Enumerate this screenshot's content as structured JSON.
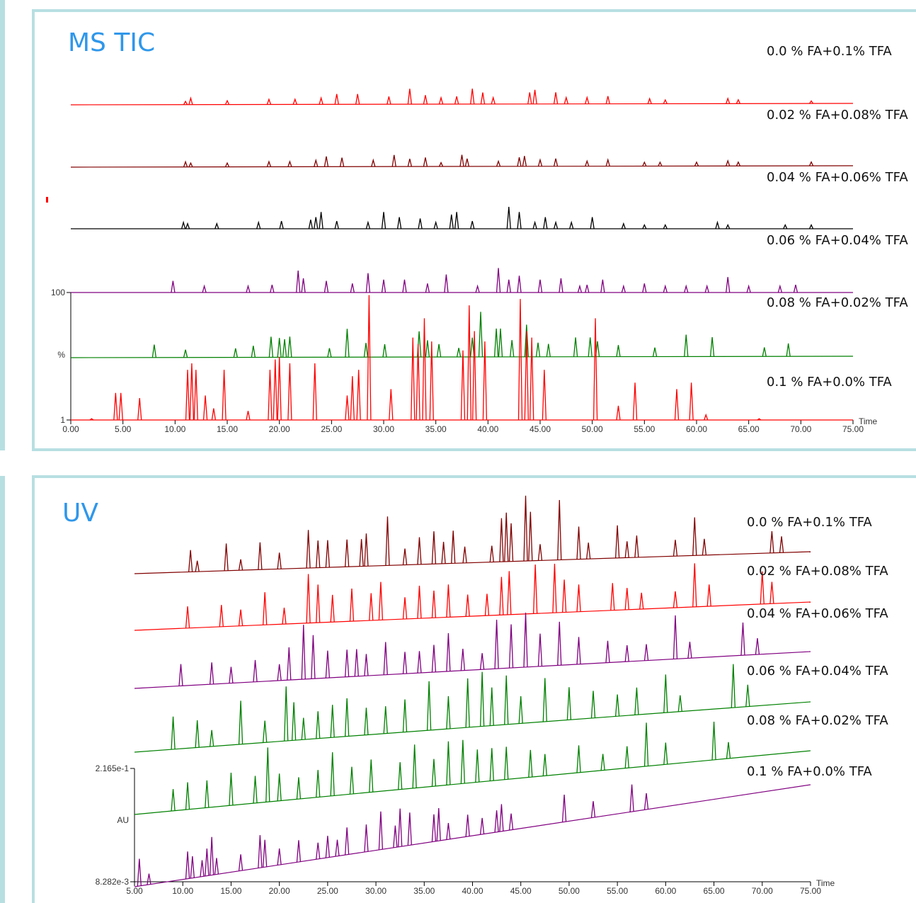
{
  "chart_data": [
    {
      "type": "line",
      "title": "MS TIC",
      "x_label": "Time",
      "y_label": "%",
      "xlim": [
        0,
        75
      ],
      "ylim": [
        1,
        100
      ],
      "xticks": [
        {
          "value": 0,
          "label": "0.00"
        },
        {
          "value": 5,
          "label": "5.00"
        },
        {
          "value": 10,
          "label": "10.00"
        },
        {
          "value": 15,
          "label": "15.00"
        },
        {
          "value": 20,
          "label": "20.00"
        },
        {
          "value": 25,
          "label": "25.00"
        },
        {
          "value": 30,
          "label": "30.00"
        },
        {
          "value": 35,
          "label": "35.00"
        },
        {
          "value": 40,
          "label": "40.00"
        },
        {
          "value": 45,
          "label": "45.00"
        },
        {
          "value": 50,
          "label": "50.00"
        },
        {
          "value": 55,
          "label": "55.00"
        },
        {
          "value": 60,
          "label": "60.00"
        },
        {
          "value": 65,
          "label": "65.00"
        },
        {
          "value": 70,
          "label": "70.00"
        },
        {
          "value": 75,
          "label": "75.00"
        }
      ],
      "yticks": [
        1,
        100
      ],
      "series": [
        {
          "name": "0.0 % FA+0.1% TFA",
          "color": "#ff0000",
          "x": [
            11,
            11.5,
            15,
            19,
            21.5,
            24,
            25.5,
            27.5,
            30.5,
            32.5,
            34,
            35.5,
            37,
            38.5,
            39.5,
            40.5,
            44,
            44.5,
            46.5,
            47.5,
            49.5,
            51.5,
            55.5,
            57,
            63,
            64,
            71
          ],
          "values": [
            2.5,
            5,
            3,
            4,
            4,
            5,
            8,
            8,
            6,
            12,
            7,
            5,
            6,
            12,
            9,
            5,
            9,
            11,
            9,
            5,
            5,
            6,
            4,
            3,
            4,
            3,
            2
          ]
        },
        {
          "name": "0.02 % FA+0.08% TFA",
          "color": "#800000",
          "x": [
            11,
            11.5,
            15,
            19,
            21,
            23.5,
            24.5,
            26,
            29,
            31,
            32.5,
            34,
            35.5,
            37.5,
            38,
            41,
            43,
            43.5,
            45,
            46.5,
            49.5,
            51.5,
            55,
            56.5,
            60,
            63,
            64,
            71
          ],
          "values": [
            4,
            3,
            3,
            4,
            4,
            5,
            8,
            7,
            5,
            9,
            6,
            7,
            3,
            9,
            6,
            4,
            7,
            8,
            5,
            6,
            4,
            5,
            3,
            3,
            3,
            4,
            3,
            3
          ]
        },
        {
          "name": "0.04 % FA+0.06% TFA",
          "color": "#000000",
          "x": [
            10.8,
            11.2,
            14,
            18,
            20.2,
            23,
            23.5,
            24,
            25.5,
            28.5,
            30,
            31.5,
            33.5,
            35,
            36.5,
            37,
            38.5,
            42,
            43,
            44.5,
            45.5,
            46.5,
            48,
            50,
            53,
            55,
            57,
            62,
            63,
            68.5,
            71
          ],
          "values": [
            5,
            4,
            4,
            5,
            6,
            7,
            9,
            13,
            6,
            5,
            13,
            9,
            8,
            5,
            11,
            13,
            6,
            17,
            13,
            5,
            9,
            5,
            5,
            9,
            4,
            3,
            3,
            5,
            3,
            3,
            3
          ]
        },
        {
          "name": "0.06 % FA+0.04% TFA",
          "color": "#800080",
          "x": [
            9.8,
            12.8,
            17,
            19.3,
            21.8,
            22.3,
            24.5,
            27,
            28.5,
            30,
            32,
            34.2,
            36,
            39,
            41,
            42,
            43,
            45,
            47,
            48.8,
            49.5,
            51,
            53,
            55,
            57,
            59,
            61,
            63,
            65,
            68,
            69.5
          ],
          "values": [
            9,
            5,
            5,
            6,
            17,
            11,
            9,
            7,
            15,
            10,
            10,
            7,
            14,
            5,
            19,
            10,
            13,
            10,
            11,
            5,
            6,
            10,
            5,
            7,
            5,
            5,
            5,
            12,
            5,
            5,
            6
          ]
        },
        {
          "name": "0.08 % FA+0.02% TFA",
          "color": "#008000",
          "x": [
            8,
            11,
            15.8,
            17.5,
            19.2,
            20,
            20.5,
            21,
            24.8,
            26.5,
            28.3,
            30.1,
            33.4,
            34.2,
            35.3,
            37.2,
            38.5,
            39.3,
            40.8,
            41.2,
            42.3,
            43.7,
            44.8,
            45.8,
            48.4,
            49.8,
            50.5,
            52.5,
            56,
            59,
            61.5,
            66.5,
            68.8
          ],
          "values": [
            10,
            6,
            7,
            9,
            16,
            15,
            14,
            16,
            7,
            22,
            11,
            10,
            20,
            13,
            10,
            7,
            15,
            35,
            22,
            22,
            13,
            25,
            11,
            10,
            15,
            15,
            12,
            9,
            7,
            17,
            15,
            7,
            10
          ]
        },
        {
          "name": "0.1 % FA+0.0% TFA",
          "color": "#ff0000",
          "x": [
            2,
            4.3,
            4.8,
            6.6,
            11.2,
            11.6,
            12,
            12.9,
            13.7,
            14.7,
            17,
            19.1,
            19.6,
            20,
            21,
            23.4,
            26.5,
            27,
            27.6,
            28.6,
            30.7,
            32.8,
            33.3,
            33.9,
            34.6,
            37.6,
            38.2,
            38.7,
            39.7,
            43.1,
            43.7,
            44.2,
            45.4,
            50.3,
            52.5,
            54.1,
            58.1,
            59.5,
            60.9,
            66
          ],
          "values": [
            2,
            22,
            22,
            18,
            40,
            45,
            40,
            20,
            10,
            40,
            8,
            40,
            48,
            50,
            45,
            45,
            20,
            35,
            40,
            98,
            25,
            65,
            60,
            80,
            62,
            55,
            90,
            70,
            62,
            95,
            70,
            65,
            40,
            80,
            12,
            30,
            25,
            30,
            5,
            2
          ]
        }
      ]
    },
    {
      "type": "line",
      "title": "UV",
      "x_label": "Time",
      "y_label": "AU",
      "xlim": [
        5,
        75
      ],
      "ylim": [
        0.008282,
        0.2165
      ],
      "xticks": [
        {
          "value": 5,
          "label": "5.00"
        },
        {
          "value": 10,
          "label": "10.00"
        },
        {
          "value": 15,
          "label": "15.00"
        },
        {
          "value": 20,
          "label": "20.00"
        },
        {
          "value": 25,
          "label": "25.00"
        },
        {
          "value": 30,
          "label": "30.00"
        },
        {
          "value": 35,
          "label": "35.00"
        },
        {
          "value": 40,
          "label": "40.00"
        },
        {
          "value": 45,
          "label": "45.00"
        },
        {
          "value": 50,
          "label": "50.00"
        },
        {
          "value": 55,
          "label": "55.00"
        },
        {
          "value": 60,
          "label": "60.00"
        },
        {
          "value": 65,
          "label": "65.00"
        },
        {
          "value": 70,
          "label": "70.00"
        },
        {
          "value": 75,
          "label": "75.00"
        }
      ],
      "yticks": [
        {
          "value": 0.008282,
          "label": "8.282e-3"
        },
        {
          "value": 0.2165,
          "label": "2.165e-1"
        }
      ],
      "series": [
        {
          "name": "0.0 % FA+0.1% TFA",
          "color": "#800000",
          "x": [
            10.8,
            11.5,
            14.5,
            16,
            18,
            20,
            23,
            24,
            25,
            27,
            28.5,
            29,
            31.2,
            33,
            34.5,
            36,
            37,
            38,
            39.2,
            42,
            43,
            43.5,
            44,
            45.5,
            46,
            47,
            49,
            51,
            52,
            55,
            56,
            57,
            61,
            63,
            64,
            71,
            72
          ],
          "values": [
            0.04,
            0.02,
            0.05,
            0.02,
            0.05,
            0.03,
            0.07,
            0.05,
            0.05,
            0.05,
            0.05,
            0.06,
            0.09,
            0.03,
            0.05,
            0.06,
            0.04,
            0.06,
            0.03,
            0.03,
            0.08,
            0.09,
            0.07,
            0.12,
            0.09,
            0.03,
            0.11,
            0.06,
            0.03,
            0.06,
            0.03,
            0.04,
            0.03,
            0.07,
            0.03,
            0.04,
            0.03
          ]
        },
        {
          "name": "0.02 % FA+0.08% TFA",
          "color": "#ff0000",
          "x": [
            10.5,
            14,
            16,
            18.5,
            20.5,
            23,
            24,
            25.5,
            27.5,
            29.5,
            30.5,
            33,
            34.5,
            36,
            37.5,
            39.5,
            41.5,
            43,
            43.8,
            46.5,
            48.5,
            49.5,
            51,
            54.5,
            56,
            57.5,
            61,
            63,
            64.5,
            70,
            71
          ],
          "values": [
            0.04,
            0.04,
            0.03,
            0.06,
            0.03,
            0.09,
            0.07,
            0.05,
            0.06,
            0.05,
            0.07,
            0.04,
            0.06,
            0.05,
            0.06,
            0.04,
            0.04,
            0.07,
            0.08,
            0.09,
            0.09,
            0.06,
            0.05,
            0.05,
            0.04,
            0.03,
            0.03,
            0.08,
            0.04,
            0.06,
            0.04
          ]
        },
        {
          "name": "0.04 % FA+0.06% TFA",
          "color": "#800080",
          "x": [
            9.8,
            13,
            15,
            17.5,
            20,
            21,
            22.5,
            23.5,
            25,
            27,
            28,
            29,
            31,
            33,
            34.5,
            36,
            37.5,
            39,
            41,
            42.5,
            44,
            45.5,
            47,
            49,
            51,
            54,
            56,
            58,
            61,
            62.5,
            68,
            69.5
          ],
          "values": [
            0.04,
            0.04,
            0.03,
            0.04,
            0.03,
            0.06,
            0.1,
            0.08,
            0.05,
            0.05,
            0.05,
            0.04,
            0.06,
            0.04,
            0.04,
            0.05,
            0.07,
            0.04,
            0.03,
            0.09,
            0.08,
            0.1,
            0.06,
            0.08,
            0.05,
            0.04,
            0.03,
            0.03,
            0.08,
            0.03,
            0.06,
            0.03
          ]
        },
        {
          "name": "0.06 % FA+0.04% TFA",
          "color": "#008000",
          "x": [
            9,
            11.5,
            13,
            16,
            18.5,
            20.7,
            21.5,
            22.5,
            24,
            25.5,
            27,
            29,
            31,
            33,
            35.5,
            37.5,
            39.5,
            41,
            42,
            43.5,
            45,
            47.5,
            50,
            52.5,
            55,
            57,
            60,
            61.5,
            67,
            68.5
          ],
          "values": [
            0.06,
            0.05,
            0.03,
            0.08,
            0.04,
            0.1,
            0.07,
            0.04,
            0.05,
            0.06,
            0.07,
            0.05,
            0.05,
            0.06,
            0.09,
            0.06,
            0.09,
            0.1,
            0.07,
            0.09,
            0.05,
            0.08,
            0.06,
            0.05,
            0.04,
            0.05,
            0.07,
            0.03,
            0.08,
            0.04
          ]
        },
        {
          "name": "0.08 % FA+0.02% TFA",
          "color": "#008000",
          "x": [
            9,
            10.5,
            12.5,
            15,
            17.5,
            18.8,
            20,
            22,
            24,
            25.5,
            27.5,
            29.5,
            32.5,
            34,
            36,
            37.5,
            39,
            40.5,
            42,
            43.5,
            46,
            47.5,
            51,
            53.5,
            56,
            58,
            60,
            65,
            66.5
          ],
          "values": [
            0.04,
            0.05,
            0.05,
            0.06,
            0.05,
            0.1,
            0.05,
            0.04,
            0.05,
            0.08,
            0.05,
            0.06,
            0.05,
            0.08,
            0.05,
            0.08,
            0.08,
            0.06,
            0.06,
            0.06,
            0.05,
            0.04,
            0.05,
            0.03,
            0.04,
            0.08,
            0.04,
            0.07,
            0.03
          ]
        },
        {
          "name": "0.1 % FA+0.0% TFA",
          "color": "#800080",
          "x": [
            5.5,
            6.5,
            10.5,
            11,
            12,
            12.5,
            13,
            13.5,
            16,
            18,
            18.5,
            20,
            22,
            24,
            25,
            26,
            27,
            29,
            30.5,
            32,
            32.5,
            33.5,
            36,
            36.5,
            37.5,
            39.5,
            41,
            42.5,
            43,
            44,
            49.5,
            52.5,
            56.5,
            58
          ],
          "values": [
            0.05,
            0.02,
            0.05,
            0.04,
            0.03,
            0.05,
            0.07,
            0.03,
            0.03,
            0.06,
            0.05,
            0.03,
            0.04,
            0.03,
            0.04,
            0.03,
            0.05,
            0.05,
            0.07,
            0.04,
            0.07,
            0.06,
            0.05,
            0.06,
            0.03,
            0.04,
            0.03,
            0.04,
            0.05,
            0.03,
            0.05,
            0.03,
            0.05,
            0.03
          ]
        }
      ]
    }
  ]
}
